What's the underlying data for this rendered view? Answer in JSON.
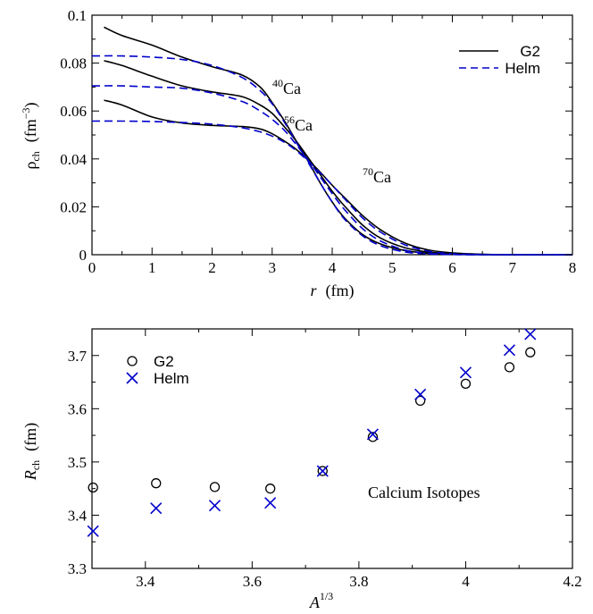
{
  "chart_data": [
    {
      "type": "line",
      "xlabel_main": "r",
      "xlabel_unit": "(fm)",
      "ylabel_main": "ρ",
      "ylabel_sub": "ch",
      "ylabel_unit_pre": "(fm",
      "ylabel_unit_sup": "−3",
      "ylabel_unit_post": ")",
      "xlim": [
        0,
        8
      ],
      "ylim": [
        0,
        0.1
      ],
      "xticks": [
        0,
        1,
        2,
        3,
        4,
        5,
        6,
        7,
        8
      ],
      "yticks": [
        0,
        0.02,
        0.04,
        0.06,
        0.08,
        0.1
      ],
      "ytick_labels": [
        "0",
        "0.02",
        "0.04",
        "0.06",
        "0.08",
        "0.1"
      ],
      "legend": [
        {
          "name": "G2",
          "style": "solid",
          "color": "#000000"
        },
        {
          "name": "Helm",
          "style": "dashed",
          "color": "#0000cc"
        }
      ],
      "annotations": [
        {
          "sup": "40",
          "text": "Ca",
          "x": 3.0,
          "y": 0.0765
        },
        {
          "sup": "56",
          "text": "Ca",
          "x": 3.2,
          "y": 0.0555
        },
        {
          "sup": "70",
          "text": "Ca",
          "x": 4.6,
          "y": 0.0335
        }
      ],
      "series": [
        {
          "isotope": "40Ca",
          "model": "G2",
          "style": "solid",
          "color": "#000000",
          "x": [
            0.2,
            0.5,
            1.0,
            1.5,
            2.0,
            2.5,
            2.8,
            3.0,
            3.2,
            3.4,
            3.6,
            3.8,
            4.0,
            4.2,
            4.5,
            4.8,
            5.2,
            5.6,
            6.0,
            6.5,
            7.0,
            8.0
          ],
          "y": [
            0.095,
            0.0915,
            0.0875,
            0.0825,
            0.0785,
            0.075,
            0.07,
            0.0635,
            0.056,
            0.0475,
            0.039,
            0.03,
            0.022,
            0.0155,
            0.0085,
            0.0045,
            0.0018,
            0.0006,
            0.0002,
            5e-05,
            0.0,
            0.0
          ]
        },
        {
          "isotope": "56Ca",
          "model": "G2",
          "style": "solid",
          "color": "#000000",
          "x": [
            0.2,
            0.5,
            1.0,
            1.5,
            2.0,
            2.5,
            2.8,
            3.0,
            3.2,
            3.4,
            3.6,
            3.8,
            4.0,
            4.2,
            4.5,
            4.8,
            5.2,
            5.6,
            6.0,
            6.5,
            7.0,
            8.0
          ],
          "y": [
            0.081,
            0.079,
            0.0745,
            0.0705,
            0.068,
            0.066,
            0.0625,
            0.059,
            0.0535,
            0.0475,
            0.0405,
            0.0335,
            0.0265,
            0.0205,
            0.0125,
            0.007,
            0.003,
            0.0011,
            0.0004,
            0.0001,
            0.0,
            0.0
          ]
        },
        {
          "isotope": "70Ca",
          "model": "G2",
          "style": "solid",
          "color": "#000000",
          "x": [
            0.2,
            0.5,
            1.0,
            1.5,
            2.0,
            2.5,
            2.8,
            3.0,
            3.2,
            3.4,
            3.6,
            3.8,
            4.0,
            4.2,
            4.5,
            4.8,
            5.2,
            5.6,
            6.0,
            6.5,
            7.0,
            8.0
          ],
          "y": [
            0.0645,
            0.0625,
            0.0575,
            0.055,
            0.054,
            0.0535,
            0.0525,
            0.0505,
            0.0475,
            0.044,
            0.0395,
            0.0345,
            0.029,
            0.024,
            0.0165,
            0.0105,
            0.005,
            0.002,
            0.0008,
            0.0002,
            0.0,
            0.0
          ]
        },
        {
          "isotope": "40Ca",
          "model": "Helm",
          "style": "dashed",
          "color": "#0000cc",
          "x": [
            0.0,
            0.5,
            1.0,
            1.5,
            2.0,
            2.5,
            2.8,
            3.0,
            3.2,
            3.4,
            3.6,
            3.8,
            4.0,
            4.2,
            4.5,
            4.8,
            5.2,
            5.6,
            6.0,
            6.5,
            7.0,
            8.0
          ],
          "y": [
            0.083,
            0.083,
            0.0825,
            0.0815,
            0.079,
            0.074,
            0.0685,
            0.063,
            0.0555,
            0.047,
            0.0385,
            0.03,
            0.022,
            0.015,
            0.008,
            0.0038,
            0.0012,
            0.0003,
            0.0001,
            0.0,
            0.0,
            0.0
          ]
        },
        {
          "isotope": "56Ca",
          "model": "Helm",
          "style": "dashed",
          "color": "#0000cc",
          "x": [
            0.0,
            0.5,
            1.0,
            1.5,
            2.0,
            2.5,
            2.8,
            3.0,
            3.2,
            3.4,
            3.6,
            3.8,
            4.0,
            4.2,
            4.5,
            4.8,
            5.2,
            5.6,
            6.0,
            6.5,
            7.0,
            8.0
          ],
          "y": [
            0.0705,
            0.0705,
            0.07,
            0.0695,
            0.0675,
            0.064,
            0.06,
            0.0565,
            0.052,
            0.046,
            0.0395,
            0.0325,
            0.0255,
            0.019,
            0.011,
            0.0058,
            0.002,
            0.0006,
            0.0001,
            0.0,
            0.0,
            0.0
          ]
        },
        {
          "isotope": "70Ca",
          "model": "Helm",
          "style": "dashed",
          "color": "#0000cc",
          "x": [
            0.0,
            0.5,
            1.0,
            1.5,
            2.0,
            2.5,
            2.8,
            3.0,
            3.2,
            3.4,
            3.6,
            3.8,
            4.0,
            4.2,
            4.5,
            4.8,
            5.2,
            5.6,
            6.0,
            6.5,
            7.0,
            8.0
          ],
          "y": [
            0.0558,
            0.0558,
            0.0556,
            0.0552,
            0.0545,
            0.053,
            0.0513,
            0.0495,
            0.047,
            0.0435,
            0.039,
            0.0342,
            0.029,
            0.0235,
            0.0155,
            0.0095,
            0.0042,
            0.0015,
            0.0004,
            0.0001,
            0.0,
            0.0
          ]
        }
      ]
    },
    {
      "type": "scatter",
      "xlabel_main": "A",
      "xlabel_sup": "1/3",
      "ylabel_main": "R",
      "ylabel_sub": "ch",
      "ylabel_unit": "(fm)",
      "xlim": [
        3.3,
        4.2
      ],
      "ylim": [
        3.3,
        3.75
      ],
      "xticks": [
        3.4,
        3.6,
        3.8,
        4.0,
        4.2
      ],
      "xtick_labels": [
        "3.4",
        "3.6",
        "3.8",
        "4",
        "4.2"
      ],
      "yticks": [
        3.3,
        3.4,
        3.5,
        3.6,
        3.7
      ],
      "ytick_labels": [
        "3.3",
        "3.4",
        "3.5",
        "3.6",
        "3.7"
      ],
      "annotation": "Calcium Isotopes",
      "legend": [
        {
          "name": "G2",
          "marker": "circle",
          "color": "#000000"
        },
        {
          "name": "Helm",
          "marker": "x",
          "color": "#0000cc"
        }
      ],
      "series": [
        {
          "name": "G2",
          "marker": "circle",
          "color": "#000000",
          "x": [
            3.302,
            3.42,
            3.53,
            3.634,
            3.732,
            3.826,
            3.915,
            4.0,
            4.082,
            4.121
          ],
          "y": [
            3.452,
            3.46,
            3.453,
            3.45,
            3.483,
            3.547,
            3.615,
            3.647,
            3.678,
            3.706
          ]
        },
        {
          "name": "Helm",
          "marker": "x",
          "color": "#0000cc",
          "x": [
            3.302,
            3.42,
            3.53,
            3.634,
            3.732,
            3.826,
            3.915,
            4.0,
            4.082,
            4.121
          ],
          "y": [
            3.37,
            3.413,
            3.418,
            3.423,
            3.483,
            3.552,
            3.627,
            3.668,
            3.71,
            3.74
          ]
        }
      ]
    }
  ]
}
